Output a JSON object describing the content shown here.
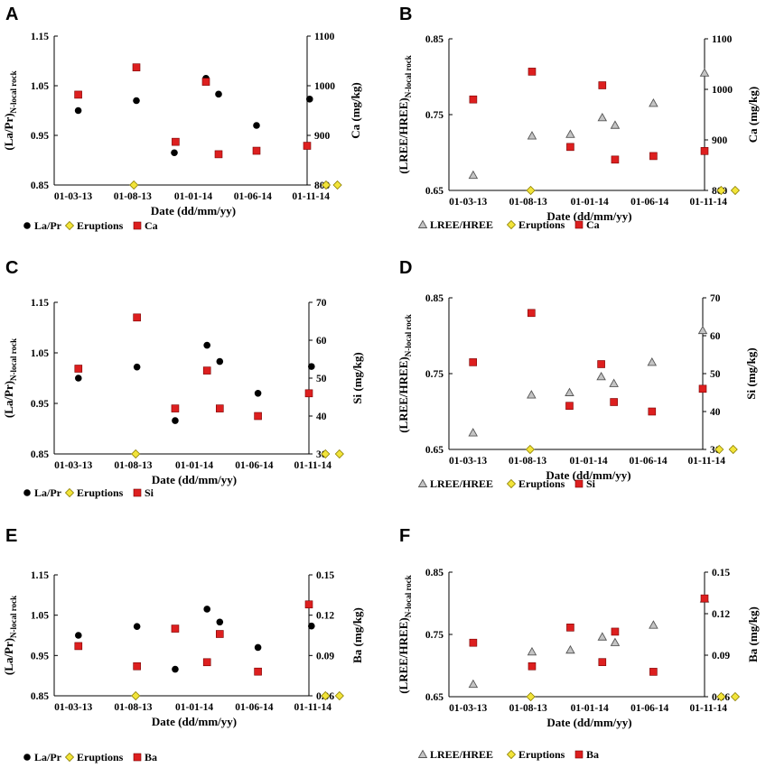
{
  "figure": {
    "date_label": "Date (dd/mm/yy)",
    "x_ticks": [
      "01-03-13",
      "01-08-13",
      "01-01-14",
      "01-06-14",
      "01-11-14"
    ],
    "x_domain": [
      0,
      20
    ],
    "x_tick_pos": [
      1.5,
      6.2,
      11.0,
      15.7,
      20.3
    ]
  },
  "chart_data": [
    {
      "panel": "A",
      "type": "scatter",
      "left_axis": {
        "label_main": "(La/Pr)",
        "label_sub": "N-local rock",
        "ticks": [
          "0.85",
          "0.95",
          "1.05",
          "1.15"
        ],
        "range": [
          0.85,
          1.15
        ]
      },
      "right_axis": {
        "label": "Ca (mg/kg)",
        "ticks": [
          "800",
          "900",
          "1000",
          "1100"
        ],
        "range": [
          800,
          1100
        ]
      },
      "series": [
        {
          "name": "La/Pr",
          "axis": "left",
          "marker": "circle",
          "points": [
            [
              1.9,
              1.0
            ],
            [
              6.5,
              1.02
            ],
            [
              9.5,
              0.915
            ],
            [
              12.0,
              1.065
            ],
            [
              13.0,
              1.033
            ],
            [
              16.0,
              0.97
            ],
            [
              20.2,
              1.023
            ]
          ]
        },
        {
          "name": "Eruptions",
          "axis": "left",
          "marker": "diamond",
          "points": [
            [
              6.3,
              0.85
            ],
            [
              21.5,
              0.85
            ],
            [
              22.4,
              0.85
            ]
          ]
        },
        {
          "name": "Ca",
          "axis": "right",
          "marker": "square",
          "points": [
            [
              1.9,
              982
            ],
            [
              6.5,
              1037
            ],
            [
              9.6,
              887
            ],
            [
              12.0,
              1008
            ],
            [
              13.0,
              862
            ],
            [
              16.0,
              869
            ],
            [
              20.0,
              879
            ]
          ]
        }
      ],
      "legend": [
        "La/Pr",
        "Eruptions",
        "Ca"
      ]
    },
    {
      "panel": "B",
      "type": "scatter",
      "left_axis": {
        "label_main": "(LREE/HREE)",
        "label_sub": "N-local rock",
        "ticks": [
          "0.65",
          "0.75",
          "0.85"
        ],
        "range": [
          0.65,
          0.85
        ]
      },
      "right_axis": {
        "label": "Ca (mg/kg)",
        "ticks": [
          "800",
          "900",
          "1000",
          "1100"
        ],
        "range": [
          800,
          1100
        ]
      },
      "series": [
        {
          "name": "LREE/HREE",
          "axis": "left",
          "marker": "triangle",
          "points": [
            [
              1.9,
              0.67
            ],
            [
              6.5,
              0.722
            ],
            [
              9.5,
              0.724
            ],
            [
              12.0,
              0.746
            ],
            [
              13.0,
              0.736
            ],
            [
              16.0,
              0.765
            ],
            [
              20.0,
              0.805
            ]
          ]
        },
        {
          "name": "Eruptions",
          "axis": "left",
          "marker": "diamond",
          "points": [
            [
              6.4,
              0.65
            ],
            [
              21.3,
              0.65
            ],
            [
              22.4,
              0.65
            ]
          ]
        },
        {
          "name": "Ca",
          "axis": "right",
          "marker": "square",
          "points": [
            [
              1.9,
              980
            ],
            [
              6.5,
              1035
            ],
            [
              9.5,
              886
            ],
            [
              12.0,
              1008
            ],
            [
              13.0,
              861
            ],
            [
              16.0,
              868
            ],
            [
              20.0,
              878
            ]
          ]
        }
      ],
      "legend": [
        "LREE/HREE",
        "Eruptions",
        "Ca"
      ]
    },
    {
      "panel": "C",
      "type": "scatter",
      "left_axis": {
        "label_main": "(La/Pr)",
        "label_sub": "N-local rock",
        "ticks": [
          "0.85",
          "0.95",
          "1.05",
          "1.15"
        ],
        "range": [
          0.85,
          1.15
        ]
      },
      "right_axis": {
        "label": "Si (mg/kg)",
        "ticks": [
          "30",
          "40",
          "50",
          "60",
          "70"
        ],
        "range": [
          30,
          70
        ]
      },
      "series": [
        {
          "name": "La/Pr",
          "axis": "left",
          "marker": "circle",
          "points": [
            [
              1.9,
              1.0
            ],
            [
              6.5,
              1.022
            ],
            [
              9.5,
              0.916
            ],
            [
              12.0,
              1.065
            ],
            [
              13.0,
              1.033
            ],
            [
              16.0,
              0.97
            ],
            [
              20.2,
              1.023
            ]
          ]
        },
        {
          "name": "Eruptions",
          "axis": "left",
          "marker": "diamond",
          "points": [
            [
              6.4,
              0.85
            ],
            [
              21.3,
              0.85
            ],
            [
              22.4,
              0.85
            ]
          ]
        },
        {
          "name": "Si",
          "axis": "right",
          "marker": "square",
          "points": [
            [
              1.9,
              52.5
            ],
            [
              6.5,
              66
            ],
            [
              9.5,
              42
            ],
            [
              12.0,
              52
            ],
            [
              13.0,
              42
            ],
            [
              16.0,
              40
            ],
            [
              20.0,
              46
            ]
          ]
        }
      ],
      "legend": [
        "La/Pr",
        "Eruptions",
        "Si"
      ]
    },
    {
      "panel": "D",
      "type": "scatter",
      "left_axis": {
        "label_main": "(LREE/HREE)",
        "label_sub": "N-local rock",
        "ticks": [
          "0.65",
          "0.75",
          "0.85"
        ],
        "range": [
          0.65,
          0.85
        ]
      },
      "right_axis": {
        "label": "Si (mg/kg)",
        "ticks": [
          "30",
          "40",
          "50",
          "60",
          "70"
        ],
        "range": [
          30,
          70
        ]
      },
      "series": [
        {
          "name": "LREE/HREE",
          "axis": "left",
          "marker": "triangle",
          "points": [
            [
              1.9,
              0.672
            ],
            [
              6.5,
              0.722
            ],
            [
              9.5,
              0.725
            ],
            [
              12.0,
              0.746
            ],
            [
              13.0,
              0.737
            ],
            [
              16.0,
              0.765
            ],
            [
              20.0,
              0.807
            ]
          ]
        },
        {
          "name": "Eruptions",
          "axis": "left",
          "marker": "diamond",
          "points": [
            [
              6.4,
              0.65
            ],
            [
              21.3,
              0.65
            ],
            [
              22.4,
              0.65
            ]
          ]
        },
        {
          "name": "Si",
          "axis": "right",
          "marker": "square",
          "points": [
            [
              1.9,
              53
            ],
            [
              6.5,
              66
            ],
            [
              9.5,
              41.5
            ],
            [
              12.0,
              52.5
            ],
            [
              13.0,
              42.5
            ],
            [
              16.0,
              40
            ],
            [
              20.0,
              46
            ]
          ]
        }
      ],
      "legend": [
        "LREE/HREE",
        "Eruptions",
        "Si"
      ]
    },
    {
      "panel": "E",
      "type": "scatter",
      "left_axis": {
        "label_main": "(La/Pr)",
        "label_sub": "N-local rock",
        "ticks": [
          "0.85",
          "0.95",
          "1.05",
          "1.15"
        ],
        "range": [
          0.85,
          1.15
        ]
      },
      "right_axis": {
        "label": "Ba (mg/kg)",
        "ticks": [
          "0.06",
          "0.09",
          "0.12",
          "0.15"
        ],
        "range": [
          0.06,
          0.15
        ]
      },
      "series": [
        {
          "name": "La/Pr",
          "axis": "left",
          "marker": "circle",
          "points": [
            [
              1.9,
              1.0
            ],
            [
              6.5,
              1.022
            ],
            [
              9.5,
              0.916
            ],
            [
              12.0,
              1.065
            ],
            [
              13.0,
              1.033
            ],
            [
              16.0,
              0.97
            ],
            [
              20.2,
              1.023
            ]
          ]
        },
        {
          "name": "Eruptions",
          "axis": "left",
          "marker": "diamond",
          "points": [
            [
              6.4,
              0.85
            ],
            [
              21.3,
              0.85
            ],
            [
              22.4,
              0.85
            ]
          ]
        },
        {
          "name": "Ba",
          "axis": "right",
          "marker": "square",
          "points": [
            [
              1.9,
              0.097
            ],
            [
              6.5,
              0.082
            ],
            [
              9.5,
              0.11
            ],
            [
              12.0,
              0.085
            ],
            [
              13.0,
              0.106
            ],
            [
              16.0,
              0.078
            ],
            [
              20.0,
              0.128
            ]
          ]
        }
      ],
      "legend": [
        "La/Pr",
        "Eruptions",
        "Ba"
      ]
    },
    {
      "panel": "F",
      "type": "scatter",
      "left_axis": {
        "label_main": "(LREE/HREE)",
        "label_sub": "N-local rock",
        "ticks": [
          "0.65",
          "0.75",
          "0.85"
        ],
        "range": [
          0.65,
          0.85
        ]
      },
      "right_axis": {
        "label": "Ba (mg/kg)",
        "ticks": [
          "0.06",
          "0.09",
          "0.12",
          "0.15"
        ],
        "range": [
          0.06,
          0.15
        ]
      },
      "series": [
        {
          "name": "LREE/HREE",
          "axis": "left",
          "marker": "triangle",
          "points": [
            [
              1.9,
              0.67
            ],
            [
              6.5,
              0.722
            ],
            [
              9.5,
              0.725
            ],
            [
              12.0,
              0.746
            ],
            [
              13.0,
              0.737
            ],
            [
              16.0,
              0.765
            ],
            [
              20.0,
              0.807
            ]
          ]
        },
        {
          "name": "Eruptions",
          "axis": "left",
          "marker": "diamond",
          "points": [
            [
              6.4,
              0.65
            ],
            [
              21.3,
              0.65
            ],
            [
              22.4,
              0.65
            ]
          ]
        },
        {
          "name": "Ba",
          "axis": "right",
          "marker": "square",
          "points": [
            [
              1.9,
              0.099
            ],
            [
              6.5,
              0.082
            ],
            [
              9.5,
              0.11
            ],
            [
              12.0,
              0.085
            ],
            [
              13.0,
              0.107
            ],
            [
              16.0,
              0.078
            ],
            [
              20.0,
              0.131
            ]
          ]
        }
      ],
      "legend": [
        "LREE/HREE",
        "Eruptions",
        "Ba"
      ]
    }
  ],
  "colors": {
    "circle": "#000000",
    "square": "#dd1f1f",
    "diamond": "#f2e43a",
    "triangle": "#c4c4c4"
  }
}
